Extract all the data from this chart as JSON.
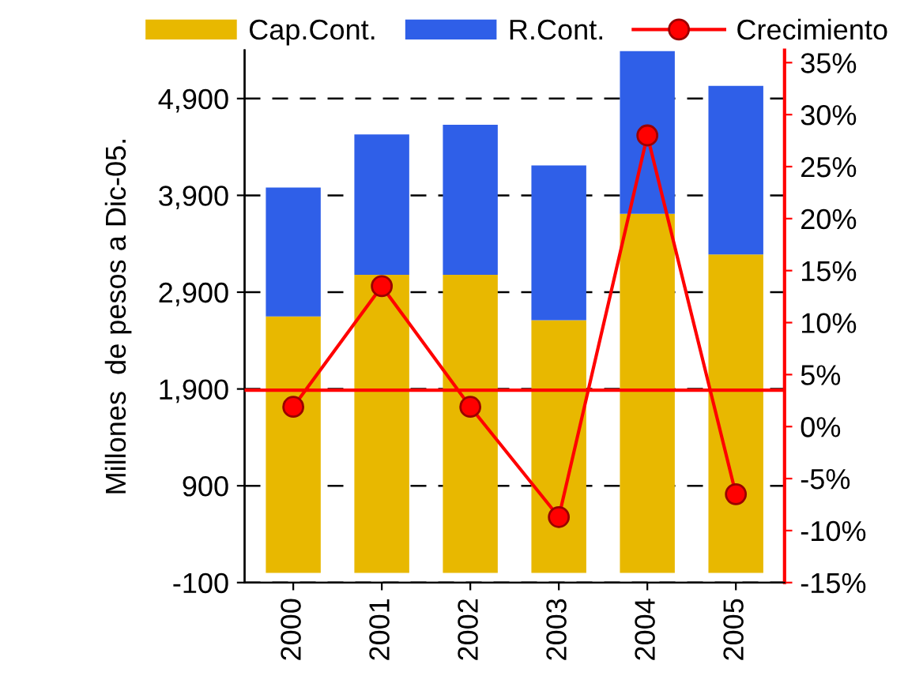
{
  "chart_data": {
    "type": "bar",
    "stacked": true,
    "ylabel": "Millones  de pesos a Dic-05.",
    "categories": [
      "2000",
      "2001",
      "2002",
      "2003",
      "2004",
      "2005"
    ],
    "series": [
      {
        "name": "Cap.Cont.",
        "color": "#e8b800",
        "values": [
          2650,
          3080,
          3080,
          2610,
          3710,
          3290
        ]
      },
      {
        "name": "R.Cont.",
        "color": "#2f5fe8",
        "values": [
          1330,
          1450,
          1550,
          1600,
          1680,
          1740
        ]
      },
      {
        "name": "Crecimiento",
        "type": "line",
        "axis": "y2",
        "color": "#ff0000",
        "marker": "circle",
        "values": [
          1.9,
          13.5,
          1.9,
          -8.7,
          28.0,
          -6.5
        ]
      }
    ],
    "ylim": [
      -100,
      5400
    ],
    "yticks": [
      -100,
      900,
      {
        "value": 1900,
        "label": "1,900"
      },
      {
        "value": 2900,
        "label": "2,900"
      },
      {
        "value": 3900,
        "label": "3,900"
      },
      {
        "value": 4900,
        "label": "4,900"
      }
    ],
    "y2lim": [
      -15,
      36.2
    ],
    "y2ticks": [
      {
        "value": -15,
        "label": "-15%"
      },
      {
        "value": -10,
        "label": "-10%"
      },
      {
        "value": -5,
        "label": "-5%"
      },
      {
        "value": 0,
        "label": "0%"
      },
      {
        "value": 5,
        "label": "5%"
      },
      {
        "value": 10,
        "label": "10%"
      },
      {
        "value": 15,
        "label": "15%"
      },
      {
        "value": 20,
        "label": "20%"
      },
      {
        "value": 25,
        "label": "25%"
      },
      {
        "value": 30,
        "label": "30%"
      },
      {
        "value": 35,
        "label": "35%"
      }
    ],
    "ref_lines": [
      {
        "axis": "y2",
        "value": 3.5,
        "color": "#ff0000"
      }
    ],
    "grid": "y",
    "legend": "top"
  }
}
